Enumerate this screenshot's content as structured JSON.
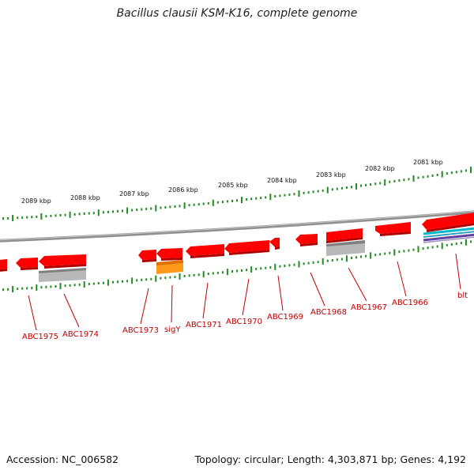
{
  "header": {
    "title": "Bacillus clausii KSM-K16, complete genome"
  },
  "footer": {
    "accession": "Accession: NC_006582",
    "summary": "Topology: circular; Length: 4,303,871 bp; Genes: 4,192"
  },
  "scale_labels": [
    "2089 kbp",
    "2088 kbp",
    "2087 kbp",
    "2086 kbp",
    "2085 kbp",
    "2084 kbp",
    "2083 kbp",
    "2082 kbp",
    "2081 kbp"
  ],
  "gene_labels": [
    "ABC1975",
    "ABC1974",
    "ABC1973",
    "sigY",
    "ABC1971",
    "ABC1970",
    "ABC1969",
    "ABC1968",
    "ABC1967",
    "ABC1966",
    "blt"
  ],
  "colors": {
    "gene_forward": "#ff0000",
    "gene_shadow": "#b00000",
    "rna_orange": "#ff9900",
    "gray_feature": "#b8b8b8",
    "backbone": "#808080",
    "tick_green": "#228b22",
    "label_red": "#c00000",
    "feature_cyan": "#00c0d0",
    "feature_purple": "#6040a0"
  }
}
